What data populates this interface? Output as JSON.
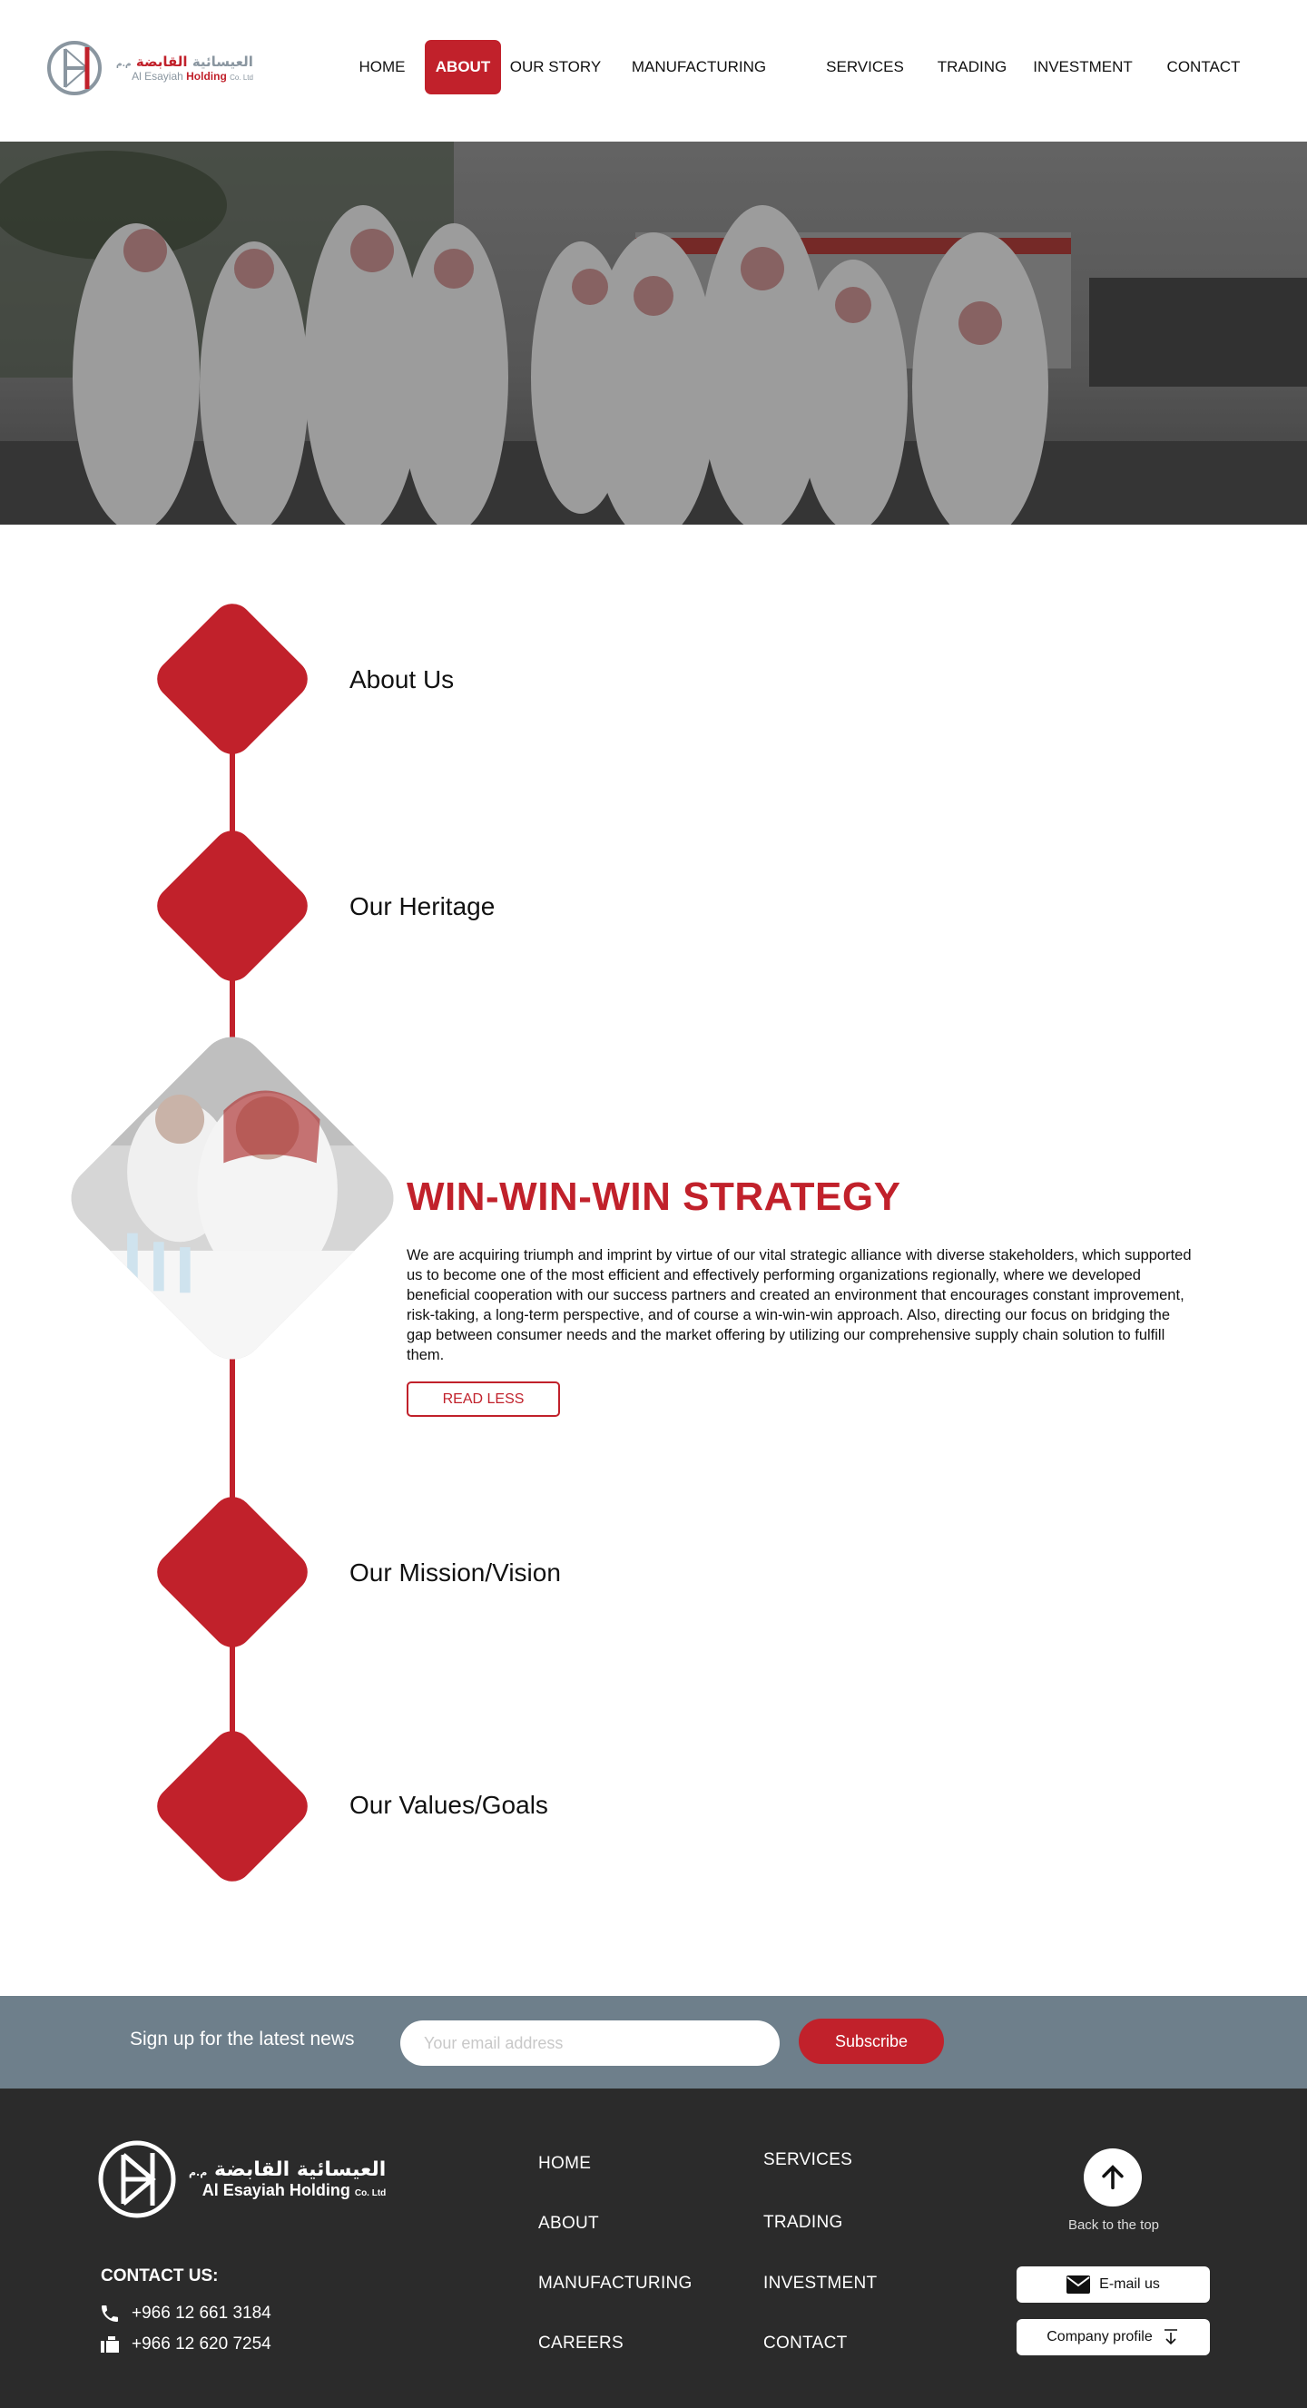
{
  "brand": {
    "name_ar_prefix": "العيسائية",
    "name_ar_highlight": "القابضة",
    "name_ar_suffix": "م.م",
    "name_en_prefix": "Al Esayiah",
    "name_en_highlight": "Holding",
    "name_en_suffix": "Co. Ltd"
  },
  "nav": {
    "items": [
      {
        "label": "HOME",
        "active": false
      },
      {
        "label": "ABOUT",
        "active": true
      },
      {
        "label": "OUR STORY",
        "active": false
      },
      {
        "label": "MANUFACTURING",
        "active": false
      },
      {
        "label": "SERVICES",
        "active": false
      },
      {
        "label": "TRADING",
        "active": false
      },
      {
        "label": "INVESTMENT",
        "active": false
      },
      {
        "label": "CONTACT",
        "active": false
      }
    ]
  },
  "timeline": {
    "items": [
      {
        "label": "About Us"
      },
      {
        "label": "Our Heritage"
      },
      {
        "label": "Our Mission/Vision"
      },
      {
        "label": "Our Values/Goals"
      }
    ],
    "expanded": {
      "title": "WIN-WIN-WIN STRATEGY",
      "body": "We are acquiring triumph and imprint by virtue of our vital strategic alliance with diverse stakeholders, which supported us to become one of the most efficient and effectively performing organizations regionally, where we developed beneficial cooperation with our success partners and created an environment that encourages constant improvement, risk-taking, a long-term perspective, and of course a win-win-win approach. Also, directing our focus on bridging the gap between consumer needs and the market offering by utilizing our comprehensive supply chain solution to fulfill them.",
      "button": "READ LESS"
    }
  },
  "newsletter": {
    "label": "Sign up for the latest news",
    "placeholder": "Your email address",
    "button": "Subscribe"
  },
  "footer": {
    "contact_title": "CONTACT US:",
    "phone": "+966 12 661 3184",
    "fax": "+966 12 620 7254",
    "links_col1": [
      "HOME",
      "ABOUT",
      "MANUFACTURING",
      "CAREERS"
    ],
    "links_col2": [
      "SERVICES",
      "TRADING",
      "INVESTMENT",
      "CONTACT"
    ],
    "back_to_top": "Back to the top",
    "email_button": "E-mail us",
    "profile_button": "Company profile"
  },
  "colors": {
    "accent": "#c1212b",
    "newsletter_bg": "#6e7f8b",
    "footer_bg": "#2b2b2b"
  }
}
